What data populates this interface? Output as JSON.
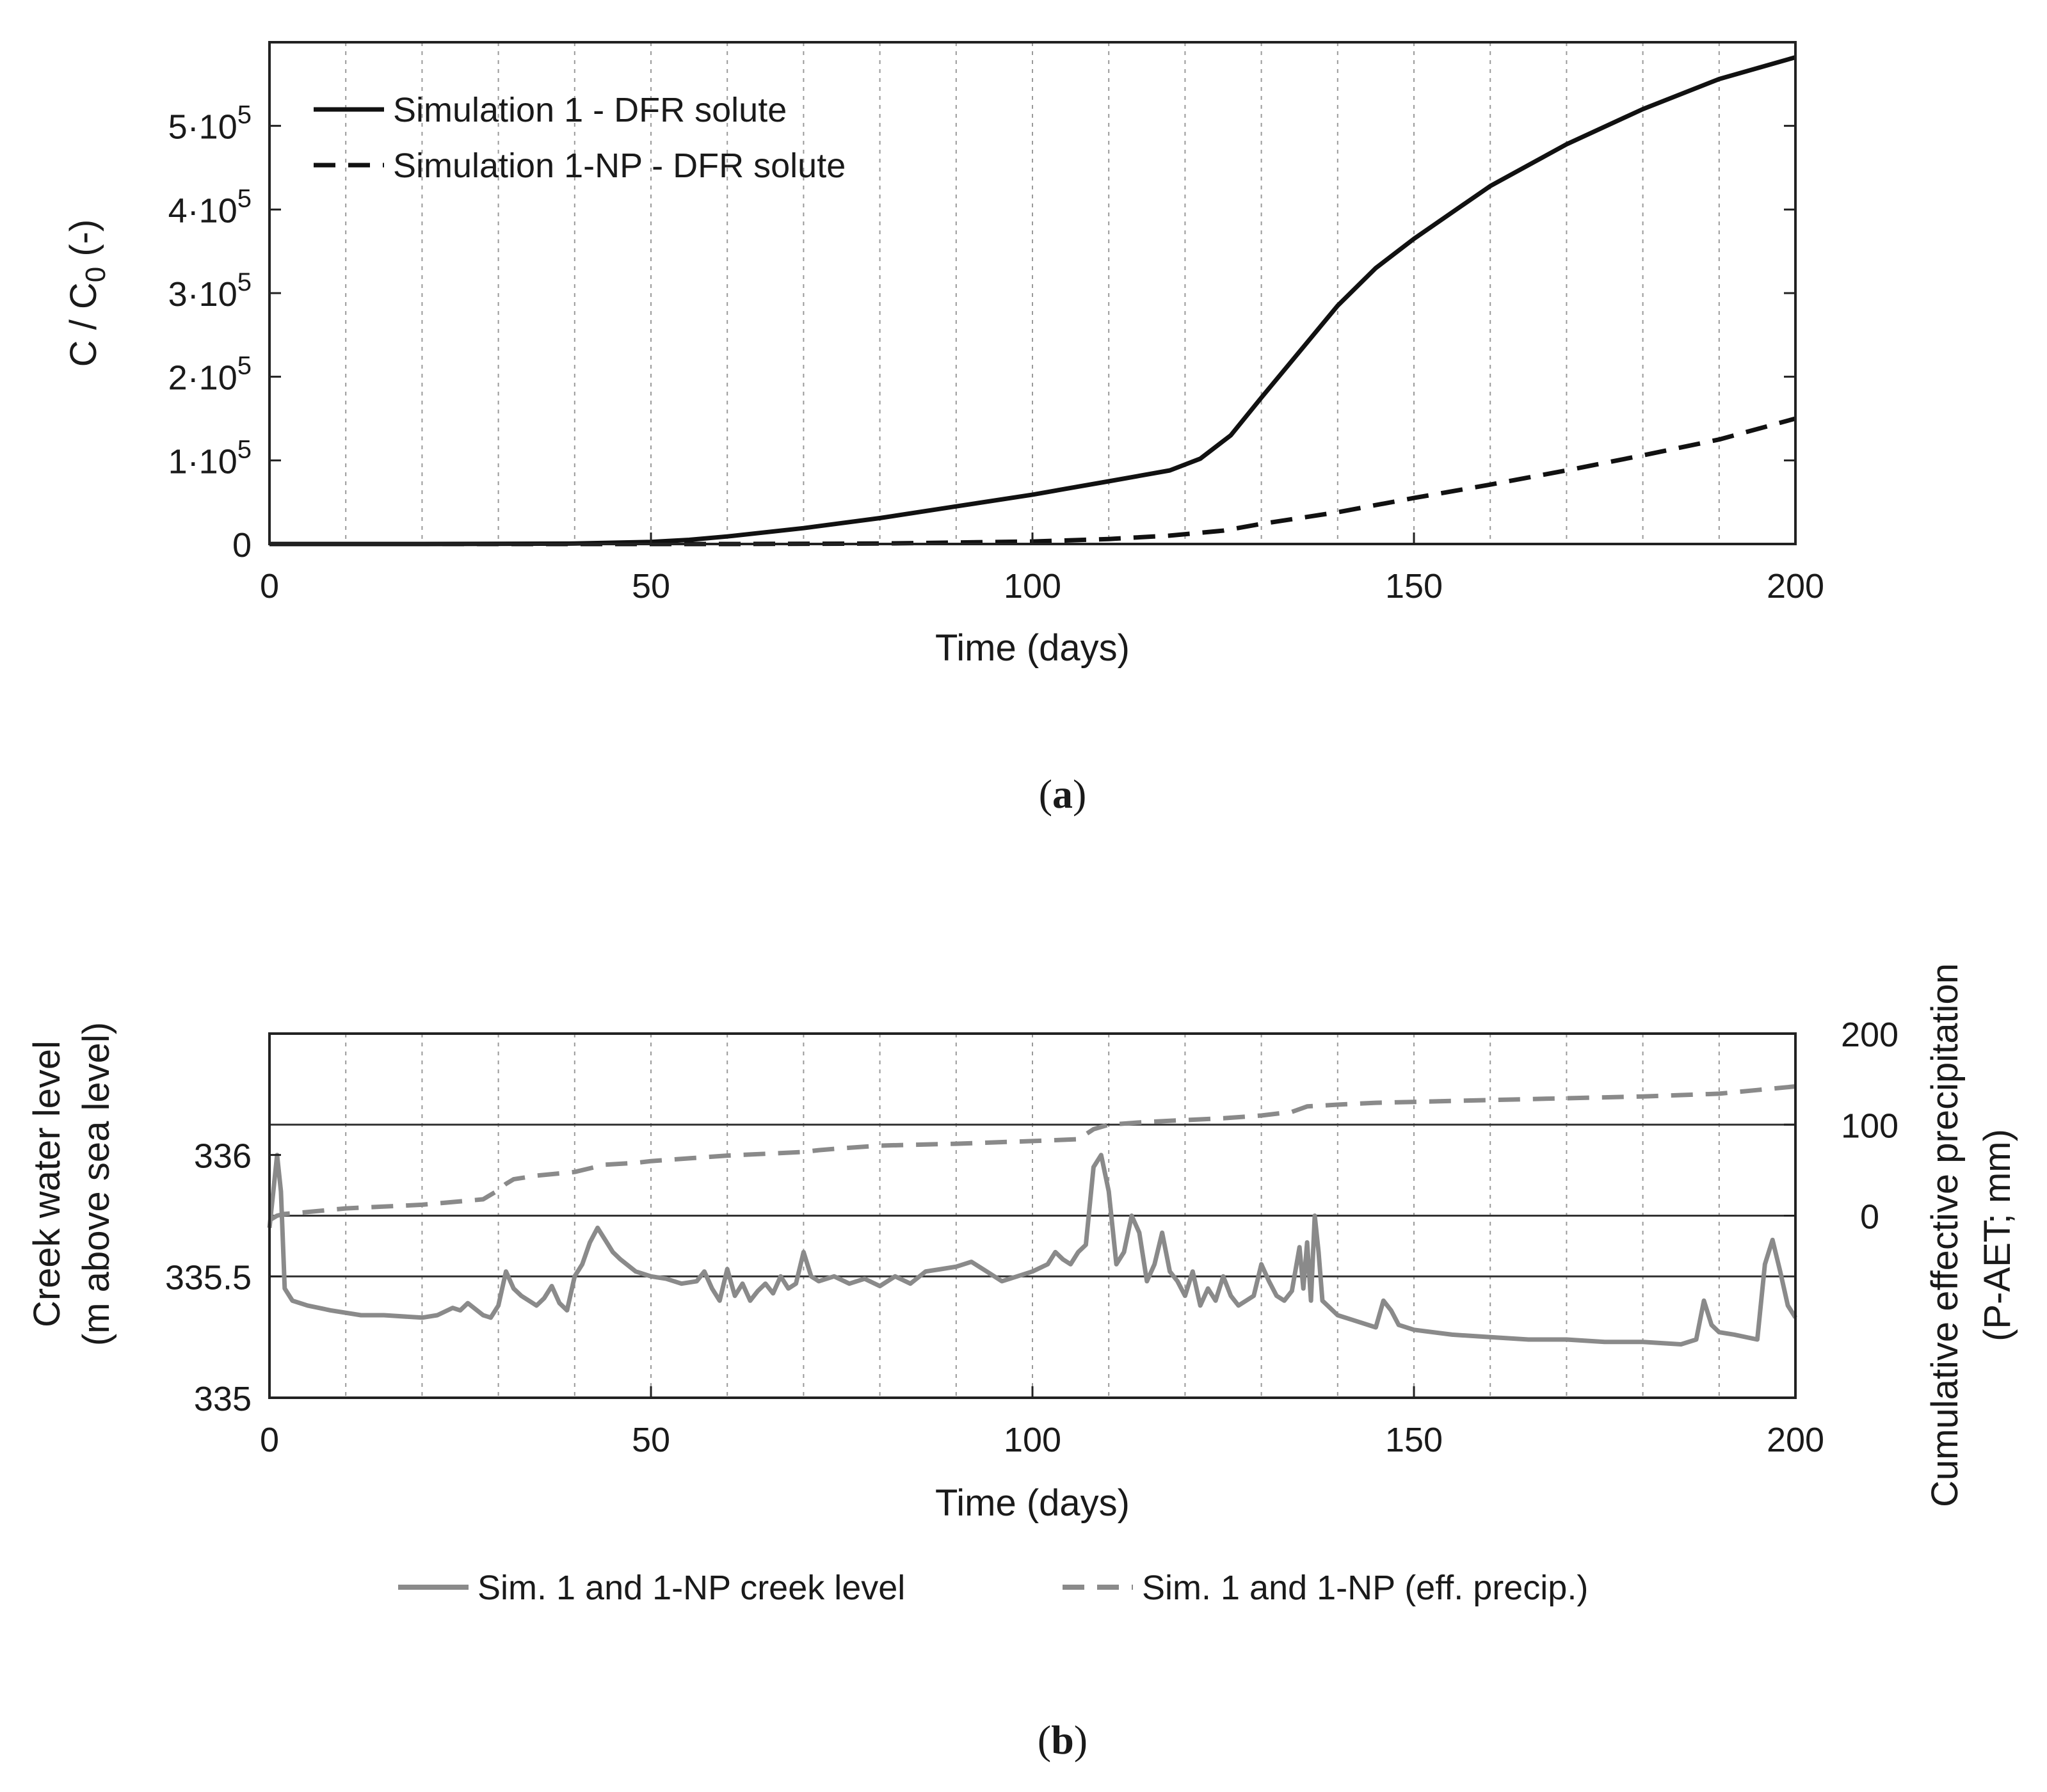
{
  "colors": {
    "sim1": "#111111",
    "sim1np": "#111111",
    "creek": "#8a8a8a",
    "precip": "#8a8a8a",
    "grid": "#9a9a9a",
    "axis": "#222222"
  },
  "chart_data": [
    {
      "id": "a",
      "type": "line",
      "panel_label": "a",
      "xlabel": "Time (days)",
      "ylabel": {
        "prefix": "C / C",
        "sub": "0",
        "suffix": " (-)"
      },
      "xlim": [
        0,
        200
      ],
      "ylim": [
        0,
        600000
      ],
      "xticks": [
        0,
        50,
        100,
        150,
        200
      ],
      "xtick_labels": [
        "0",
        "50",
        "100",
        "150",
        "200"
      ],
      "yticks": [
        0,
        100000,
        200000,
        300000,
        400000,
        500000
      ],
      "ytick_labels": [
        {
          "mant": "0",
          "exp": ""
        },
        {
          "mant": "1·10",
          "exp": "5"
        },
        {
          "mant": "2·10",
          "exp": "5"
        },
        {
          "mant": "3·10",
          "exp": "5"
        },
        {
          "mant": "4·10",
          "exp": "5"
        },
        {
          "mant": "5·10",
          "exp": "5"
        }
      ],
      "grid": {
        "vertical_minor_every": 10,
        "horizontal_major": true
      },
      "series": [
        {
          "name": "Simulation 1 - DFR solute",
          "style": "solid",
          "x": [
            0,
            20,
            40,
            50,
            55,
            60,
            70,
            80,
            90,
            100,
            110,
            118,
            122,
            126,
            130,
            135,
            140,
            145,
            150,
            160,
            170,
            180,
            190,
            200
          ],
          "y": [
            0,
            0,
            500,
            2500,
            5000,
            9000,
            19000,
            31000,
            45000,
            59000,
            75000,
            88000,
            102000,
            130000,
            175000,
            230000,
            285000,
            330000,
            365000,
            428000,
            478000,
            520000,
            556000,
            582000
          ]
        },
        {
          "name": "Simulation 1-NP - DFR solute",
          "style": "dashed",
          "x": [
            0,
            40,
            60,
            80,
            100,
            110,
            118,
            125,
            130,
            140,
            150,
            160,
            170,
            180,
            190,
            200
          ],
          "y": [
            0,
            0,
            0,
            500,
            3000,
            6000,
            10000,
            16000,
            24000,
            38000,
            55000,
            71000,
            88000,
            106000,
            125000,
            150000
          ]
        }
      ],
      "legend": "top-left"
    },
    {
      "id": "b",
      "type": "line",
      "panel_label": "b",
      "xlabel": "Time (days)",
      "ylabel_left": [
        "Creek water level",
        "(m above sea level)"
      ],
      "ylabel_right": [
        "Cumulative effective precipitation",
        "(P-AET; mm)"
      ],
      "xlim": [
        0,
        200
      ],
      "ylim_left": [
        335,
        336.5
      ],
      "ylim_right": [
        -200,
        200
      ],
      "xticks": [
        0,
        50,
        100,
        150,
        200
      ],
      "xtick_labels": [
        "0",
        "50",
        "100",
        "150",
        "200"
      ],
      "yticks_left": [
        335,
        335.5,
        336
      ],
      "ytick_labels_left": [
        "335",
        "335.5",
        "336"
      ],
      "yticks_right": [
        0,
        100,
        200
      ],
      "ytick_labels_right": [
        "0",
        "100",
        "200"
      ],
      "hlines_right": [
        0,
        100
      ],
      "hlines_left": [
        335.5
      ],
      "series": [
        {
          "name": "Sim. 1 and 1-NP creek level",
          "axis": "left",
          "style": "solid",
          "x": [
            0,
            0.5,
            1,
            1.5,
            2,
            3,
            5,
            8,
            12,
            15,
            20,
            22,
            24,
            25,
            26,
            28,
            29,
            30,
            31,
            32,
            33,
            34,
            35,
            36,
            37,
            38,
            39,
            40,
            41,
            42,
            43,
            44,
            45,
            46,
            48,
            50,
            52,
            54,
            56,
            57,
            58,
            59,
            60,
            61,
            62,
            63,
            64,
            65,
            66,
            67,
            68,
            69,
            70,
            71,
            72,
            74,
            76,
            78,
            80,
            82,
            84,
            86,
            88,
            90,
            92,
            94,
            96,
            98,
            100,
            102,
            103,
            104,
            105,
            106,
            107,
            108,
            109,
            110,
            111,
            112,
            113,
            114,
            115,
            116,
            117,
            118,
            119,
            120,
            121,
            122,
            123,
            124,
            125,
            126,
            127,
            128,
            129,
            130,
            131,
            132,
            133,
            134,
            135,
            135.5,
            136,
            136.5,
            137,
            137.5,
            138,
            140,
            142,
            145,
            146,
            147,
            148,
            150,
            155,
            160,
            165,
            170,
            175,
            180,
            185,
            187,
            188,
            189,
            190,
            192,
            195,
            196,
            197,
            198,
            199,
            200
          ],
          "y": [
            335.7,
            335.85,
            336.0,
            335.85,
            335.45,
            335.4,
            335.38,
            335.36,
            335.34,
            335.34,
            335.33,
            335.34,
            335.37,
            335.36,
            335.39,
            335.34,
            335.33,
            335.38,
            335.52,
            335.45,
            335.42,
            335.4,
            335.38,
            335.41,
            335.46,
            335.39,
            335.36,
            335.5,
            335.55,
            335.64,
            335.7,
            335.65,
            335.6,
            335.57,
            335.52,
            335.5,
            335.49,
            335.47,
            335.48,
            335.52,
            335.45,
            335.4,
            335.53,
            335.42,
            335.47,
            335.4,
            335.44,
            335.47,
            335.43,
            335.5,
            335.45,
            335.47,
            335.6,
            335.5,
            335.48,
            335.5,
            335.47,
            335.49,
            335.46,
            335.5,
            335.47,
            335.52,
            335.53,
            335.54,
            335.56,
            335.52,
            335.48,
            335.5,
            335.52,
            335.55,
            335.6,
            335.57,
            335.55,
            335.6,
            335.63,
            335.95,
            336.0,
            335.85,
            335.55,
            335.6,
            335.75,
            335.68,
            335.48,
            335.55,
            335.68,
            335.52,
            335.48,
            335.42,
            335.52,
            335.38,
            335.45,
            335.4,
            335.5,
            335.42,
            335.38,
            335.4,
            335.42,
            335.55,
            335.48,
            335.42,
            335.4,
            335.44,
            335.62,
            335.45,
            335.64,
            335.4,
            335.75,
            335.6,
            335.4,
            335.34,
            335.32,
            335.29,
            335.4,
            335.36,
            335.3,
            335.28,
            335.26,
            335.25,
            335.24,
            335.24,
            335.23,
            335.23,
            335.22,
            335.24,
            335.4,
            335.3,
            335.27,
            335.26,
            335.24,
            335.55,
            335.65,
            335.52,
            335.38,
            335.33
          ],
          "color_key": "creek"
        },
        {
          "name": "Sim. 1 and 1-NP (eff. precip.)",
          "axis": "right",
          "style": "dashed",
          "x": [
            0,
            1,
            2,
            5,
            10,
            20,
            28,
            30,
            31,
            32,
            35,
            40,
            42,
            44,
            48,
            50,
            55,
            60,
            65,
            70,
            72,
            75,
            80,
            90,
            100,
            106,
            108,
            110,
            115,
            120,
            125,
            130,
            134,
            136,
            140,
            145,
            150,
            160,
            170,
            180,
            190,
            195,
            200
          ],
          "y": [
            -5,
            0,
            2,
            4,
            8,
            12,
            18,
            28,
            35,
            40,
            44,
            48,
            52,
            56,
            58,
            60,
            63,
            66,
            68,
            70,
            72,
            74,
            77,
            79,
            82,
            84,
            95,
            100,
            103,
            105,
            107,
            110,
            114,
            120,
            122,
            124,
            125,
            127,
            129,
            131,
            134,
            138,
            142
          ],
          "color_key": "precip"
        }
      ],
      "legend": "bottom-outside"
    }
  ]
}
